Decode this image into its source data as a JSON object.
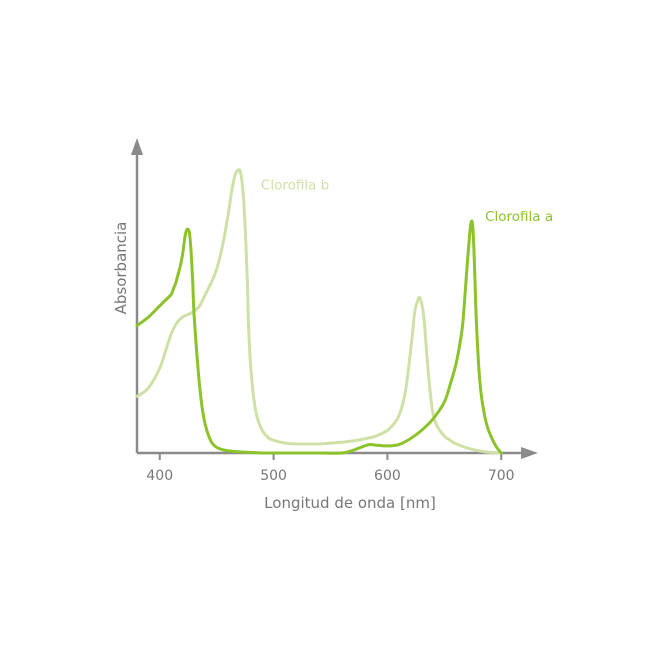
{
  "chart_data": {
    "type": "line",
    "xlabel": "Longitud de onda [nm]",
    "ylabel": "Absorbancia",
    "xlim": [
      380,
      720
    ],
    "ylim": [
      0,
      1
    ],
    "xticks": [
      {
        "value": 400,
        "label": "400"
      },
      {
        "value": 500,
        "label": "500"
      },
      {
        "value": 600,
        "label": "600"
      },
      {
        "value": 700,
        "label": "700"
      }
    ],
    "grid": false,
    "series": [
      {
        "name": "Clorofila b",
        "color": "#cfe0a6",
        "x": [
          380,
          390,
          400,
          405,
          410,
          415,
          420,
          425,
          430,
          435,
          440,
          445,
          450,
          455,
          460,
          463,
          466,
          469,
          471,
          473,
          475,
          477,
          478,
          480,
          483,
          486,
          490,
          495,
          500,
          510,
          520,
          530,
          540,
          550,
          560,
          570,
          580,
          590,
          600,
          605,
          610,
          615,
          618,
          620,
          622,
          624,
          626,
          628,
          630,
          632,
          634,
          636,
          638,
          640,
          643,
          646,
          650,
          655,
          660,
          670,
          680,
          690,
          700
        ],
        "y": [
          0.2,
          0.23,
          0.3,
          0.36,
          0.42,
          0.46,
          0.48,
          0.49,
          0.5,
          0.52,
          0.56,
          0.6,
          0.65,
          0.73,
          0.84,
          0.92,
          0.98,
          1.0,
          0.99,
          0.93,
          0.8,
          0.6,
          0.45,
          0.3,
          0.18,
          0.12,
          0.08,
          0.055,
          0.045,
          0.035,
          0.032,
          0.032,
          0.032,
          0.035,
          0.038,
          0.043,
          0.05,
          0.06,
          0.08,
          0.1,
          0.13,
          0.2,
          0.28,
          0.35,
          0.42,
          0.5,
          0.53,
          0.55,
          0.53,
          0.48,
          0.38,
          0.28,
          0.2,
          0.14,
          0.1,
          0.08,
          0.06,
          0.045,
          0.033,
          0.018,
          0.008,
          0.002,
          0.0
        ]
      },
      {
        "name": "Clorofila a",
        "color": "#8cc22a",
        "x": [
          380,
          390,
          400,
          405,
          410,
          412,
          414,
          416,
          418,
          420,
          421,
          422,
          423,
          424,
          425,
          426,
          427,
          428,
          429,
          430,
          432,
          434,
          436,
          438,
          440,
          443,
          446,
          450,
          455,
          460,
          470,
          480,
          490,
          500,
          520,
          540,
          560,
          570,
          580,
          585,
          590,
          600,
          610,
          620,
          630,
          640,
          650,
          655,
          660,
          663,
          666,
          668,
          670,
          672,
          673,
          674,
          675,
          676,
          677,
          678,
          680,
          682,
          685,
          688,
          692,
          696,
          700
        ],
        "y": [
          0.45,
          0.48,
          0.52,
          0.54,
          0.56,
          0.58,
          0.6,
          0.63,
          0.66,
          0.7,
          0.73,
          0.76,
          0.78,
          0.79,
          0.79,
          0.78,
          0.74,
          0.68,
          0.6,
          0.5,
          0.38,
          0.28,
          0.2,
          0.14,
          0.1,
          0.06,
          0.035,
          0.02,
          0.012,
          0.008,
          0.004,
          0.002,
          0.0,
          0.0,
          0.0,
          0.0,
          0.0,
          0.01,
          0.025,
          0.03,
          0.028,
          0.025,
          0.03,
          0.05,
          0.08,
          0.12,
          0.18,
          0.24,
          0.31,
          0.37,
          0.45,
          0.55,
          0.66,
          0.76,
          0.8,
          0.82,
          0.8,
          0.72,
          0.6,
          0.48,
          0.32,
          0.22,
          0.14,
          0.09,
          0.05,
          0.02,
          0.0
        ]
      }
    ],
    "annotations": [
      {
        "text": "Clorofila b",
        "series": 0,
        "x": 473,
        "y": 0.98,
        "color": "#cfe0a6"
      },
      {
        "text": "Clorofila a",
        "series": 1,
        "x": 670,
        "y": 0.87,
        "color": "#8cc22a"
      }
    ]
  }
}
